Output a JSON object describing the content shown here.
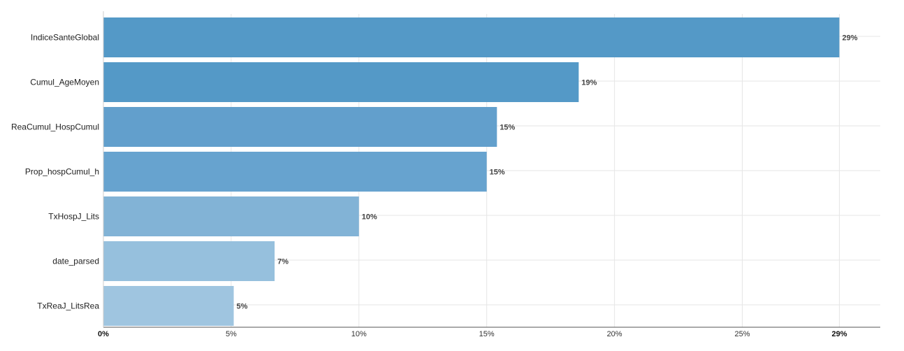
{
  "chart_data": {
    "type": "bar",
    "orientation": "horizontal",
    "categories": [
      "IndiceSanteGlobal",
      "Cumul_AgeMoyen",
      "ReaCumul_HospCumul",
      "Prop_hospCumul_h",
      "TxHospJ_Lits",
      "date_parsed",
      "TxReaJ_LitsRea"
    ],
    "values": [
      28.8,
      18.6,
      15.4,
      15.0,
      10.0,
      6.7,
      5.1
    ],
    "value_labels": [
      "29%",
      "19%",
      "15%",
      "15%",
      "10%",
      "7%",
      "5%"
    ],
    "colors": [
      "#5499c7",
      "#5499c7",
      "#629fcc",
      "#67a3cf",
      "#82b3d6",
      "#96c0dd",
      "#9fc5e0"
    ],
    "xticks": [
      {
        "value": 0,
        "label": "0%"
      },
      {
        "value": 5,
        "label": "5%"
      },
      {
        "value": 10,
        "label": "10%"
      },
      {
        "value": 15,
        "label": "15%"
      },
      {
        "value": 20,
        "label": "20%"
      },
      {
        "value": 25,
        "label": "25%"
      },
      {
        "value": 28.8,
        "label": "29%"
      }
    ],
    "xlim": [
      0,
      30.4
    ],
    "grid": true,
    "title": "",
    "xlabel": "",
    "ylabel": ""
  }
}
